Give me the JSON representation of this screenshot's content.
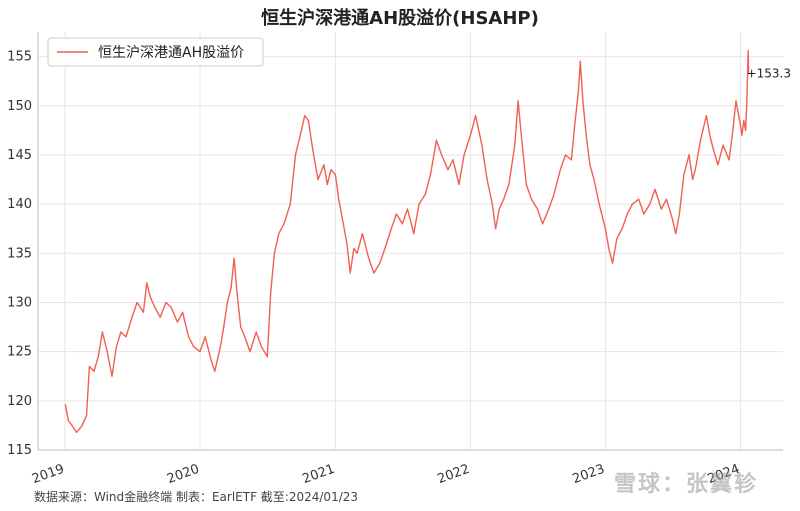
{
  "chart_data": {
    "type": "line",
    "title": "恒生沪深港通AH股溢价(HSAHP)",
    "xlabel": "",
    "ylabel": "",
    "x_ticks": [
      "2019",
      "2020",
      "2021",
      "2022",
      "2023",
      "2024"
    ],
    "y_ticks": [
      115,
      120,
      125,
      130,
      135,
      140,
      145,
      150,
      155
    ],
    "xlim": [
      "2018-10-20",
      "2024-04-25"
    ],
    "ylim": [
      115,
      157.5
    ],
    "grid": true,
    "legend_position": "top-left",
    "series": [
      {
        "name": "恒生沪深港通AH股溢价",
        "color": "#f06050",
        "points": [
          [
            "2019-01-02",
            119.6
          ],
          [
            "2019-01-10",
            118.0
          ],
          [
            "2019-01-20",
            117.5
          ],
          [
            "2019-02-01",
            116.8
          ],
          [
            "2019-02-15",
            117.4
          ],
          [
            "2019-02-28",
            118.5
          ],
          [
            "2019-03-08",
            123.5
          ],
          [
            "2019-03-20",
            123.0
          ],
          [
            "2019-04-01",
            124.5
          ],
          [
            "2019-04-12",
            127.0
          ],
          [
            "2019-04-25",
            125.0
          ],
          [
            "2019-05-08",
            122.5
          ],
          [
            "2019-05-20",
            125.5
          ],
          [
            "2019-06-01",
            127.0
          ],
          [
            "2019-06-15",
            126.5
          ],
          [
            "2019-07-01",
            128.5
          ],
          [
            "2019-07-15",
            130.0
          ],
          [
            "2019-08-01",
            129.0
          ],
          [
            "2019-08-10",
            132.0
          ],
          [
            "2019-08-20",
            130.5
          ],
          [
            "2019-09-01",
            129.5
          ],
          [
            "2019-09-15",
            128.5
          ],
          [
            "2019-10-01",
            130.0
          ],
          [
            "2019-10-15",
            129.5
          ],
          [
            "2019-11-01",
            128.0
          ],
          [
            "2019-11-15",
            129.0
          ],
          [
            "2019-12-01",
            126.5
          ],
          [
            "2019-12-15",
            125.5
          ],
          [
            "2020-01-01",
            125.0
          ],
          [
            "2020-01-15",
            126.5
          ],
          [
            "2020-02-01",
            124.0
          ],
          [
            "2020-02-10",
            123.0
          ],
          [
            "2020-02-25",
            125.5
          ],
          [
            "2020-03-05",
            127.5
          ],
          [
            "2020-03-15",
            130.0
          ],
          [
            "2020-03-25",
            131.5
          ],
          [
            "2020-04-02",
            134.5
          ],
          [
            "2020-04-10",
            131.0
          ],
          [
            "2020-04-20",
            127.5
          ],
          [
            "2020-05-01",
            126.5
          ],
          [
            "2020-05-15",
            125.0
          ],
          [
            "2020-06-01",
            127.0
          ],
          [
            "2020-06-15",
            125.5
          ],
          [
            "2020-07-01",
            124.5
          ],
          [
            "2020-07-10",
            131.0
          ],
          [
            "2020-07-20",
            135.0
          ],
          [
            "2020-08-01",
            137.0
          ],
          [
            "2020-08-15",
            138.0
          ],
          [
            "2020-09-01",
            140.0
          ],
          [
            "2020-09-15",
            145.0
          ],
          [
            "2020-10-01",
            147.5
          ],
          [
            "2020-10-10",
            149.0
          ],
          [
            "2020-10-20",
            148.5
          ],
          [
            "2020-11-01",
            145.5
          ],
          [
            "2020-11-15",
            142.5
          ],
          [
            "2020-12-01",
            144.0
          ],
          [
            "2020-12-10",
            142.0
          ],
          [
            "2020-12-20",
            143.5
          ],
          [
            "2021-01-01",
            143.0
          ],
          [
            "2021-01-10",
            140.5
          ],
          [
            "2021-01-20",
            138.5
          ],
          [
            "2021-02-01",
            136.0
          ],
          [
            "2021-02-10",
            133.0
          ],
          [
            "2021-02-20",
            135.5
          ],
          [
            "2021-03-01",
            135.0
          ],
          [
            "2021-03-15",
            137.0
          ],
          [
            "2021-04-01",
            134.5
          ],
          [
            "2021-04-15",
            133.0
          ],
          [
            "2021-05-01",
            134.0
          ],
          [
            "2021-05-15",
            135.5
          ],
          [
            "2021-06-01",
            137.5
          ],
          [
            "2021-06-15",
            139.0
          ],
          [
            "2021-07-01",
            138.0
          ],
          [
            "2021-07-15",
            139.5
          ],
          [
            "2021-08-01",
            137.0
          ],
          [
            "2021-08-15",
            140.0
          ],
          [
            "2021-09-01",
            141.0
          ],
          [
            "2021-09-15",
            143.0
          ],
          [
            "2021-10-01",
            146.5
          ],
          [
            "2021-10-15",
            145.0
          ],
          [
            "2021-11-01",
            143.5
          ],
          [
            "2021-11-15",
            144.5
          ],
          [
            "2021-12-01",
            142.0
          ],
          [
            "2021-12-15",
            145.0
          ],
          [
            "2022-01-01",
            147.0
          ],
          [
            "2022-01-15",
            149.0
          ],
          [
            "2022-02-01",
            146.0
          ],
          [
            "2022-02-15",
            142.5
          ],
          [
            "2022-03-01",
            140.0
          ],
          [
            "2022-03-10",
            137.5
          ],
          [
            "2022-03-20",
            139.5
          ],
          [
            "2022-04-01",
            140.5
          ],
          [
            "2022-04-15",
            142.0
          ],
          [
            "2022-05-01",
            146.0
          ],
          [
            "2022-05-10",
            150.5
          ],
          [
            "2022-05-20",
            146.5
          ],
          [
            "2022-06-01",
            142.0
          ],
          [
            "2022-06-15",
            140.5
          ],
          [
            "2022-07-01",
            139.5
          ],
          [
            "2022-07-15",
            138.0
          ],
          [
            "2022-08-01",
            139.5
          ],
          [
            "2022-08-15",
            141.0
          ],
          [
            "2022-09-01",
            143.5
          ],
          [
            "2022-09-15",
            145.0
          ],
          [
            "2022-10-01",
            144.5
          ],
          [
            "2022-10-10",
            148.0
          ],
          [
            "2022-10-20",
            151.5
          ],
          [
            "2022-10-25",
            154.5
          ],
          [
            "2022-11-01",
            150.5
          ],
          [
            "2022-11-10",
            147.0
          ],
          [
            "2022-11-20",
            144.0
          ],
          [
            "2022-12-01",
            142.5
          ],
          [
            "2022-12-15",
            140.0
          ],
          [
            "2023-01-01",
            137.5
          ],
          [
            "2023-01-10",
            135.5
          ],
          [
            "2023-01-20",
            134.0
          ],
          [
            "2023-02-01",
            136.5
          ],
          [
            "2023-02-15",
            137.5
          ],
          [
            "2023-03-01",
            139.0
          ],
          [
            "2023-03-15",
            140.0
          ],
          [
            "2023-04-01",
            140.5
          ],
          [
            "2023-04-15",
            139.0
          ],
          [
            "2023-05-01",
            140.0
          ],
          [
            "2023-05-15",
            141.5
          ],
          [
            "2023-06-01",
            139.5
          ],
          [
            "2023-06-15",
            140.5
          ],
          [
            "2023-07-01",
            138.5
          ],
          [
            "2023-07-10",
            137.0
          ],
          [
            "2023-07-20",
            139.0
          ],
          [
            "2023-08-01",
            143.0
          ],
          [
            "2023-08-15",
            145.0
          ],
          [
            "2023-08-25",
            142.5
          ],
          [
            "2023-09-01",
            143.5
          ],
          [
            "2023-09-15",
            146.5
          ],
          [
            "2023-10-01",
            149.0
          ],
          [
            "2023-10-10",
            147.0
          ],
          [
            "2023-10-20",
            145.5
          ],
          [
            "2023-11-01",
            144.0
          ],
          [
            "2023-11-15",
            146.0
          ],
          [
            "2023-12-01",
            144.5
          ],
          [
            "2023-12-10",
            147.0
          ],
          [
            "2023-12-20",
            150.5
          ],
          [
            "2024-01-01",
            148.0
          ],
          [
            "2024-01-05",
            147.0
          ],
          [
            "2024-01-10",
            148.5
          ],
          [
            "2024-01-15",
            147.5
          ],
          [
            "2024-01-18",
            150.0
          ],
          [
            "2024-01-22",
            155.6
          ],
          [
            "2024-01-23",
            153.3
          ]
        ]
      }
    ],
    "annotations": [
      {
        "text": "+153.3"
      }
    ]
  },
  "footer": {
    "source": "数据来源：Wind金融终端 制表：EarlETF 截至:2024/01/23",
    "watermark": "雪球：张翼轸"
  },
  "colors": {
    "line": "#f06050",
    "grid": "#e6e6e6",
    "axis": "#bbbbbb"
  }
}
